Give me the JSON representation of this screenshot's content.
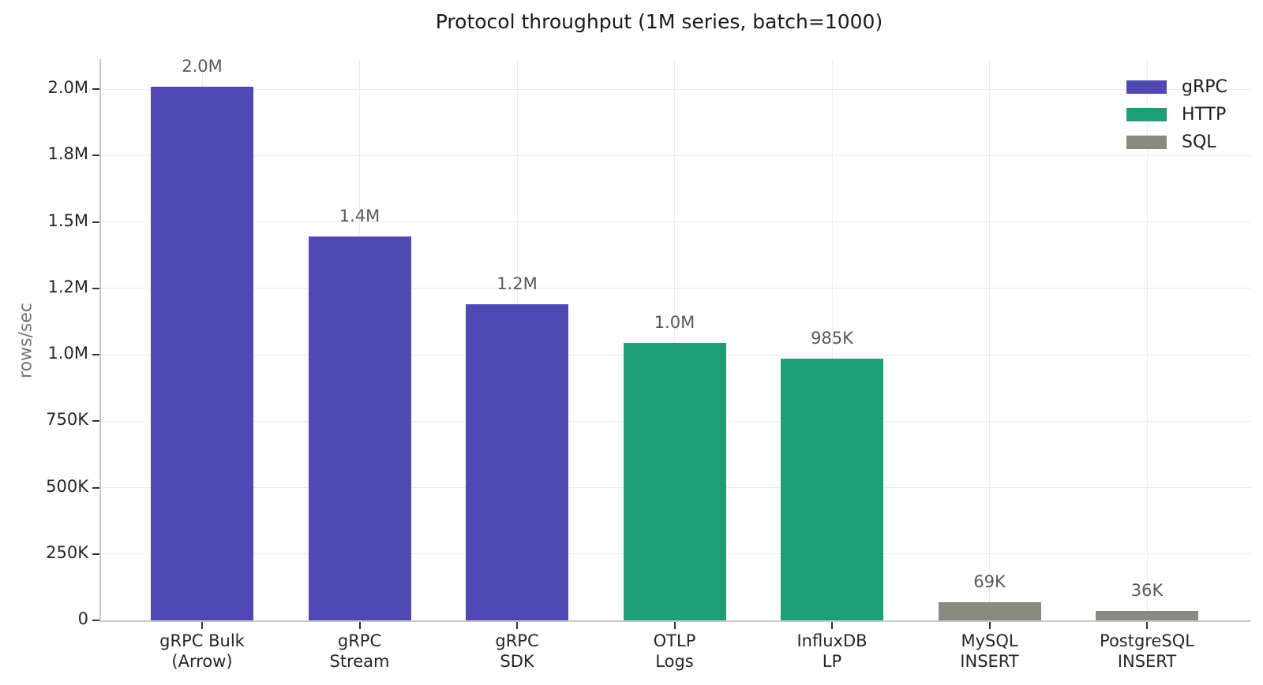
{
  "chart_data": {
    "type": "bar",
    "title": "Protocol throughput (1M series, batch=1000)",
    "xlabel": "",
    "ylabel": "rows/sec",
    "ylim": [
      0,
      2113000
    ],
    "grid": true,
    "legend_position": "upper right",
    "categories": [
      "gRPC Bulk\n(Arrow)",
      "gRPC\nStream",
      "gRPC\nSDK",
      "OTLP\nLogs",
      "InfluxDB\nLP",
      "MySQL\nINSERT",
      "PostgreSQL\nINSERT"
    ],
    "bars": [
      {
        "name": "grpc-bulk-arrow",
        "category": "gRPC Bulk\n(Arrow)",
        "value": 2010000,
        "label": "2.0M",
        "group": "gRPC"
      },
      {
        "name": "grpc-stream",
        "category": "gRPC\nStream",
        "value": 1445000,
        "label": "1.4M",
        "group": "gRPC"
      },
      {
        "name": "grpc-sdk",
        "category": "gRPC\nSDK",
        "value": 1190000,
        "label": "1.2M",
        "group": "gRPC"
      },
      {
        "name": "otlp-logs",
        "category": "OTLP\nLogs",
        "value": 1045000,
        "label": "1.0M",
        "group": "HTTP"
      },
      {
        "name": "influxdb-lp",
        "category": "InfluxDB\nLP",
        "value": 985000,
        "label": "985K",
        "group": "HTTP"
      },
      {
        "name": "mysql-insert",
        "category": "MySQL\nINSERT",
        "value": 69000,
        "label": "69K",
        "group": "SQL"
      },
      {
        "name": "postgresql-insert",
        "category": "PostgreSQL\nINSERT",
        "value": 36000,
        "label": "36K",
        "group": "SQL"
      }
    ],
    "groups": [
      {
        "name": "gRPC",
        "color": "#5149B3"
      },
      {
        "name": "HTTP",
        "color": "#1E9E77"
      },
      {
        "name": "SQL",
        "color": "#8A8980"
      }
    ],
    "yticks": [
      {
        "value": 0,
        "label": "0"
      },
      {
        "value": 250000,
        "label": "250K"
      },
      {
        "value": 500000,
        "label": "500K"
      },
      {
        "value": 750000,
        "label": "750K"
      },
      {
        "value": 1000000,
        "label": "1.0M"
      },
      {
        "value": 1250000,
        "label": "1.2M"
      },
      {
        "value": 1500000,
        "label": "1.5M"
      },
      {
        "value": 1750000,
        "label": "1.8M"
      },
      {
        "value": 2000000,
        "label": "2.0M"
      }
    ],
    "legend": [
      "gRPC",
      "HTTP",
      "SQL"
    ]
  }
}
